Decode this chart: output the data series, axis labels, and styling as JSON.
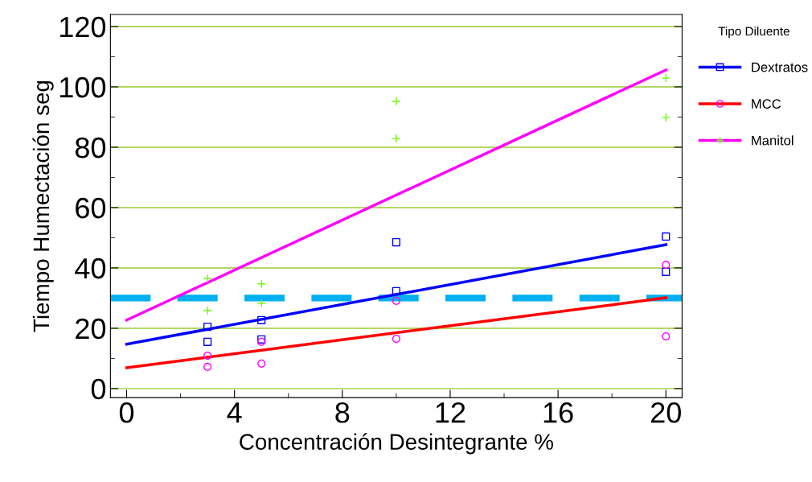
{
  "chart_data": {
    "type": "line",
    "xlabel": "Concentración Desintegrante %",
    "ylabel": "Tiempo Humectación seg",
    "legend_title": "Tipo Diluente",
    "xlim": [
      -0.6,
      20.6
    ],
    "ylim": [
      -3,
      124
    ],
    "xticks": [
      0,
      4,
      8,
      12,
      16,
      20
    ],
    "yticks": [
      0,
      20,
      40,
      60,
      80,
      100,
      120
    ],
    "grid": "y",
    "legend": "right",
    "series": [
      {
        "name": "Dextratos",
        "color": "#0000ff",
        "x": [
          0,
          20
        ],
        "values": [
          14.7,
          47.7
        ]
      },
      {
        "name": "MCC",
        "color": "#ff0000",
        "x": [
          0,
          20
        ],
        "values": [
          6.9,
          30.1
        ]
      },
      {
        "name": "Manitol",
        "color": "#ff00ff",
        "x": [
          0,
          20
        ],
        "values": [
          22.7,
          105.6
        ]
      },
      {
        "type": "scatter",
        "color": "#0000ff",
        "marker": "square",
        "x": [
          3,
          3,
          5,
          5,
          10,
          10,
          20,
          20
        ],
        "values": [
          20.5,
          15.5,
          22.7,
          16.3,
          48.5,
          32.3,
          50.4,
          38.7
        ]
      },
      {
        "type": "scatter",
        "color": "#ff00ff",
        "marker": "circle",
        "x": [
          3,
          3,
          5,
          5,
          10,
          10,
          20,
          20
        ],
        "values": [
          10.9,
          7.2,
          15.5,
          8.3,
          29.1,
          16.5,
          41,
          17.3
        ]
      },
      {
        "type": "scatter",
        "color": "#66ff00",
        "marker": "cross",
        "x": [
          3,
          3,
          5,
          5,
          10,
          10,
          20,
          20
        ],
        "values": [
          36.5,
          25.9,
          34.7,
          28.3,
          95.2,
          82.9,
          102.9,
          89.9
        ]
      }
    ],
    "ref_lines": [
      {
        "axis": "y",
        "value": 30,
        "color": "#00b0f0",
        "line_style": "dashed"
      }
    ]
  }
}
